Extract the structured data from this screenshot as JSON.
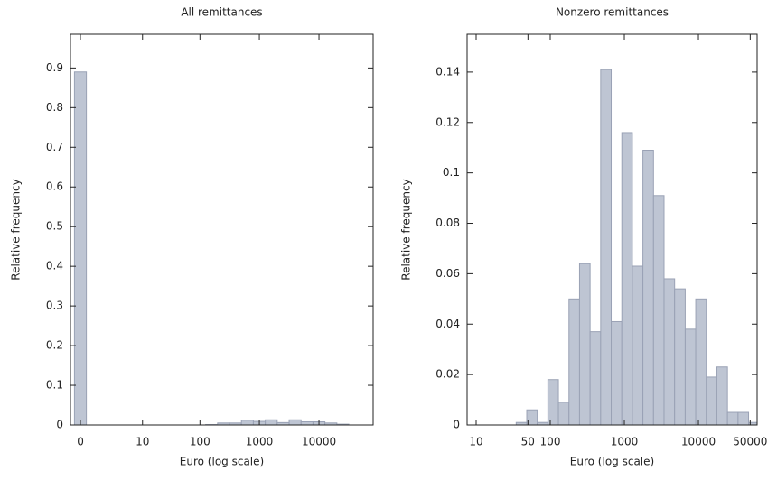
{
  "chart_data": [
    {
      "type": "histogram",
      "title": "All remittances",
      "xlabel": "Euro (log scale)",
      "ylabel": "Relative frequency",
      "xscale": "log1p",
      "color": "#bec5d3",
      "edgecolor": "#9aa2b5",
      "bins": [
        -0.206,
        0.259,
        0.995,
        2.16,
        4.01,
        6.94,
        11.6,
        18.95,
        30.6,
        49.1,
        78.4,
        124.9,
        198.5,
        315,
        500,
        793,
        1258,
        1994,
        3161,
        5011,
        7942,
        12588,
        19952,
        31622,
        50118,
        79432
      ],
      "values": [
        0.89,
        0,
        0,
        0,
        0,
        0,
        0,
        0,
        0,
        0,
        0,
        0.001,
        0.005,
        0.005,
        0.012,
        0.009,
        0.013,
        0.006,
        0.013,
        0.008,
        0.008,
        0.005,
        0.002,
        0,
        0
      ],
      "xlim": [
        -0.319,
        81000
      ],
      "ylim": [
        0,
        0.985
      ],
      "xticks": [
        0,
        10,
        100,
        1000,
        10000
      ],
      "yticks": [
        0,
        0.1,
        0.2,
        0.3,
        0.4,
        0.5,
        0.6,
        0.7,
        0.8,
        0.9
      ]
    },
    {
      "type": "histogram",
      "title": "Nonzero remittances",
      "xlabel": "Euro (log scale)",
      "ylabel": "Relative frequency",
      "xscale": "log",
      "color": "#bec5d3",
      "edgecolor": "#9aa2b5",
      "bins": [
        34.7,
        48.2,
        66.9,
        92.9,
        128.9,
        179.1,
        248.6,
        345.2,
        479.5,
        665.6,
        924.6,
        1284,
        1782,
        2477,
        3437,
        4775,
        6637,
        9204,
        12794,
        17742,
        24660,
        34277,
        47534,
        66069
      ],
      "values": [
        0.001,
        0.006,
        0.001,
        0.018,
        0.009,
        0.05,
        0.064,
        0.037,
        0.141,
        0.041,
        0.116,
        0.063,
        0.109,
        0.091,
        0.058,
        0.054,
        0.038,
        0.05,
        0.019,
        0.023,
        0.005,
        0.005,
        0.001
      ],
      "xlim": [
        7.55,
        62000
      ],
      "ylim": [
        0,
        0.155
      ],
      "xticks": [
        10,
        50,
        100,
        1000,
        10000,
        50000
      ],
      "yticks": [
        0,
        0.02,
        0.04,
        0.06,
        0.08,
        0.1,
        0.12,
        0.14
      ]
    }
  ]
}
